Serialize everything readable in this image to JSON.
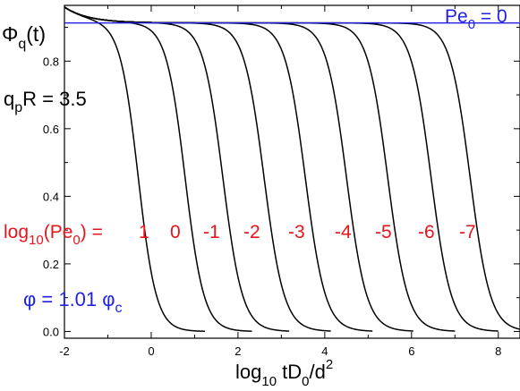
{
  "chart_data": {
    "type": "line",
    "xlabel": {
      "pre": "log",
      "sub": "10",
      "post": " tD",
      "sub2": "0",
      "post2": "/d",
      "sup": "2"
    },
    "ylabel": {
      "pre": "Φ",
      "sub": "q",
      "post": "(t)"
    },
    "xlim": [
      -2,
      8.5
    ],
    "ylim": [
      -0.02,
      0.965
    ],
    "x_ticks": [
      -2,
      0,
      2,
      4,
      6,
      8
    ],
    "y_ticks": [
      0.0,
      0.2,
      0.4,
      0.6,
      0.8
    ],
    "x_tick_labels": [
      "-2",
      "0",
      "2",
      "4",
      "6",
      "8"
    ],
    "y_tick_labels": [
      "0.0",
      "0.2",
      "0.4",
      "0.6",
      "0.8"
    ],
    "plateau": 0.913,
    "curves": [
      {
        "label": "1",
        "x50": -0.3,
        "steep": 4.8
      },
      {
        "label": "0",
        "x50": 0.78,
        "steep": 4.6
      },
      {
        "label": "-1",
        "x50": 1.65,
        "steep": 4.4
      },
      {
        "label": "-2",
        "x50": 2.6,
        "steep": 4.3
      },
      {
        "label": "-3",
        "x50": 3.55,
        "steep": 4.3
      },
      {
        "label": "-4",
        "x50": 4.5,
        "steep": 4.3
      },
      {
        "label": "-5",
        "x50": 5.45,
        "steep": 4.3
      },
      {
        "label": "-6",
        "x50": 6.45,
        "steep": 4.3
      },
      {
        "label": "-7",
        "x50": 7.35,
        "steep": 4.3
      }
    ],
    "reference_series": {
      "text": "Pe",
      "sub": "0",
      "post": " = 0",
      "color": "#1f22e6",
      "value": 0.913
    },
    "curve_color": "#000000"
  },
  "annotations": {
    "qpR": {
      "pre": "q",
      "sub": "p",
      "post": "R = 3.5"
    },
    "pe_row": {
      "prefix_pre": "log",
      "prefix_sub": "10",
      "prefix_mid": "(Pe",
      "prefix_sub2": "0",
      "prefix_post": ") =",
      "values": [
        "1",
        "0",
        "-1",
        "-2",
        "-3",
        "-4",
        "-5",
        "-6",
        "-7"
      ],
      "color": "#e8141a"
    },
    "phi": {
      "pre": "φ = 1.01 φ",
      "sub": "c",
      "color": "#1f22e6"
    }
  }
}
